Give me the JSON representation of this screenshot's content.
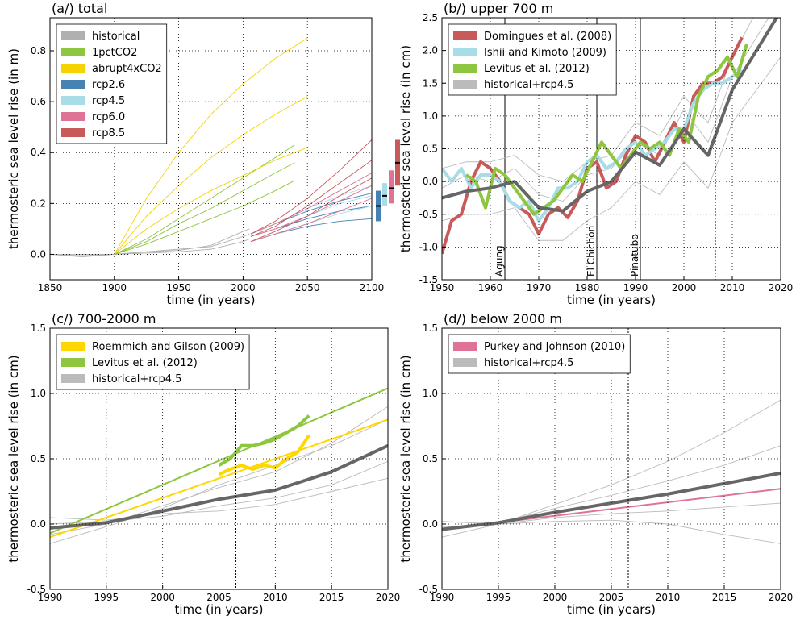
{
  "chart_data": [
    {
      "type": "line",
      "title": "(a/) total",
      "xlabel": "time (in years)",
      "ylabel": "thermosteric sea level rise (in m)",
      "xlim": [
        1850,
        2100
      ],
      "ylim": [
        -0.1,
        0.93
      ],
      "xticks": [
        1850,
        1900,
        1950,
        2000,
        2050,
        2100
      ],
      "yticks": [
        {
          "value": 0,
          "label": "0.0"
        },
        0.2,
        0.4,
        0.6,
        0.8
      ],
      "grid": true,
      "legend": "upper left",
      "series": [
        {
          "name": "historical",
          "color": "#b0b0b0",
          "x": [
            1850,
            1875,
            1900,
            1925,
            1950,
            1975,
            2000,
            2005
          ],
          "members": [
            [
              0,
              -0.01,
              0,
              0.005,
              0.01,
              0.02,
              0.05,
              0.06
            ],
            [
              0,
              0,
              0,
              0.01,
              0.02,
              0.03,
              0.07,
              0.08
            ],
            [
              0,
              -0.005,
              0,
              0.01,
              0.015,
              0.035,
              0.09,
              0.1
            ]
          ]
        },
        {
          "name": "1pctCO2",
          "color": "#8ec63f",
          "x": [
            1900,
            1925,
            1950,
            1975,
            2000,
            2025,
            2040
          ],
          "members": [
            [
              0,
              0.04,
              0.09,
              0.14,
              0.19,
              0.25,
              0.29
            ],
            [
              0,
              0.05,
              0.12,
              0.18,
              0.25,
              0.32,
              0.36
            ],
            [
              0,
              0.06,
              0.14,
              0.22,
              0.3,
              0.38,
              0.43
            ]
          ]
        },
        {
          "name": "abrupt4xCO2",
          "color": "#f5d300",
          "x": [
            1900,
            1925,
            1950,
            1975,
            2000,
            2025,
            2050
          ],
          "members": [
            [
              0,
              0.1,
              0.18,
              0.25,
              0.31,
              0.37,
              0.42
            ],
            [
              0,
              0.15,
              0.27,
              0.38,
              0.47,
              0.55,
              0.62
            ],
            [
              0,
              0.22,
              0.4,
              0.55,
              0.67,
              0.77,
              0.85
            ]
          ]
        },
        {
          "name": "rcp2.6",
          "color": "#4682b4",
          "x": [
            2006,
            2025,
            2050,
            2075,
            2100
          ],
          "members": [
            [
              0.05,
              0.08,
              0.11,
              0.13,
              0.14
            ],
            [
              0.07,
              0.1,
              0.14,
              0.17,
              0.19
            ],
            [
              0.08,
              0.12,
              0.17,
              0.21,
              0.24
            ]
          ],
          "range": [
            0.13,
            0.25
          ],
          "range_mean": 0.19
        },
        {
          "name": "rcp4.5",
          "color": "#a8dde8",
          "x": [
            2006,
            2025,
            2050,
            2075,
            2100
          ],
          "members": [
            [
              0.05,
              0.08,
              0.12,
              0.16,
              0.19
            ],
            [
              0.07,
              0.1,
              0.15,
              0.2,
              0.23
            ],
            [
              0.08,
              0.12,
              0.18,
              0.23,
              0.27
            ]
          ],
          "range": [
            0.19,
            0.28
          ],
          "range_mean": 0.23
        },
        {
          "name": "rcp6.0",
          "color": "#de7396",
          "x": [
            2006,
            2025,
            2050,
            2075,
            2100
          ],
          "members": [
            [
              0.05,
              0.08,
              0.12,
              0.17,
              0.22
            ],
            [
              0.07,
              0.1,
              0.15,
              0.21,
              0.27
            ],
            [
              0.08,
              0.12,
              0.18,
              0.25,
              0.32
            ]
          ],
          "range": [
            0.2,
            0.33
          ],
          "range_mean": 0.26
        },
        {
          "name": "rcp8.5",
          "color": "#c85a5a",
          "x": [
            2006,
            2025,
            2050,
            2075,
            2100
          ],
          "members": [
            [
              0.05,
              0.09,
              0.15,
              0.23,
              0.3
            ],
            [
              0.07,
              0.11,
              0.19,
              0.28,
              0.37
            ],
            [
              0.08,
              0.13,
              0.22,
              0.33,
              0.45
            ]
          ],
          "range": [
            0.27,
            0.45
          ],
          "range_mean": 0.36
        }
      ]
    },
    {
      "type": "line",
      "title": "(b/) upper 700 m",
      "xlabel": "time (in years)",
      "ylabel": "thermosteric sea level rise (in cm)",
      "xlim": [
        1950,
        2020
      ],
      "ylim": [
        -1.5,
        2.5
      ],
      "xticks": [
        1950,
        1960,
        1970,
        1980,
        1990,
        2000,
        2010,
        2020
      ],
      "yticks": [
        -1.5,
        {
          "value": -1,
          "label": "-1.0"
        },
        -0.5,
        {
          "value": 0,
          "label": "0.0"
        },
        0.5,
        {
          "value": 1,
          "label": "1.0"
        },
        1.5,
        {
          "value": 2,
          "label": "2.0"
        },
        2.5
      ],
      "grid": true,
      "legend": "upper left",
      "vline": 2006.5,
      "annotations": [
        {
          "label": "Agung",
          "x": 1963
        },
        {
          "label": "El Chichon",
          "x": 1982
        },
        {
          "label": "Pinatubo",
          "x": 1991
        }
      ],
      "series": [
        {
          "name": "Domingues et al. (2008)",
          "color": "#c85a5a",
          "x": [
            1950,
            1952,
            1954,
            1956,
            1958,
            1960,
            1962,
            1964,
            1966,
            1968,
            1970,
            1972,
            1974,
            1976,
            1978,
            1980,
            1982,
            1984,
            1986,
            1988,
            1990,
            1992,
            1994,
            1996,
            1998,
            2000,
            2002,
            2004,
            2006,
            2008,
            2010,
            2012
          ],
          "values": [
            -1.1,
            -0.6,
            -0.5,
            0.0,
            0.3,
            0.2,
            0.0,
            -0.3,
            -0.4,
            -0.5,
            -0.8,
            -0.5,
            -0.4,
            -0.55,
            -0.3,
            0.2,
            0.3,
            -0.1,
            0.0,
            0.4,
            0.7,
            0.6,
            0.3,
            0.6,
            0.9,
            0.6,
            1.3,
            1.5,
            1.5,
            1.6,
            1.9,
            2.2
          ]
        },
        {
          "name": "Ishii and Kimoto (2009)",
          "color": "#a8dde8",
          "x": [
            1950,
            1952,
            1954,
            1956,
            1958,
            1960,
            1962,
            1964,
            1966,
            1968,
            1970,
            1972,
            1974,
            1976,
            1978,
            1980,
            1982,
            1984,
            1986,
            1988,
            1990,
            1992,
            1994,
            1996,
            1998,
            2000,
            2002,
            2004,
            2006,
            2008,
            2010,
            2012
          ],
          "values": [
            0.2,
            0.0,
            0.2,
            -0.1,
            0.1,
            0.1,
            0.0,
            -0.3,
            -0.4,
            -0.3,
            -0.6,
            -0.4,
            -0.1,
            -0.1,
            0.0,
            0.3,
            0.4,
            0.2,
            0.3,
            0.5,
            0.6,
            0.4,
            0.5,
            0.6,
            0.8,
            0.8,
            1.2,
            1.4,
            1.5,
            1.5,
            1.6,
            1.7
          ]
        },
        {
          "name": "Levitus et al. (2012)",
          "color": "#8ec63f",
          "x": [
            1955,
            1957,
            1959,
            1961,
            1963,
            1965,
            1967,
            1969,
            1971,
            1973,
            1975,
            1977,
            1979,
            1981,
            1983,
            1985,
            1987,
            1989,
            1991,
            1993,
            1995,
            1997,
            1999,
            2001,
            2003,
            2005,
            2007,
            2009,
            2011,
            2013
          ],
          "values": [
            0.1,
            0.0,
            -0.4,
            0.2,
            0.1,
            -0.1,
            -0.3,
            -0.5,
            -0.4,
            -0.3,
            -0.1,
            0.1,
            0.0,
            0.3,
            0.6,
            0.4,
            0.2,
            0.4,
            0.6,
            0.5,
            0.6,
            0.4,
            0.8,
            0.6,
            1.3,
            1.6,
            1.7,
            1.9,
            1.6,
            2.1
          ]
        },
        {
          "name": "historical+rcp4.5",
          "color": "#bbbbbb",
          "mean_color": "#666666",
          "x": [
            1950,
            1955,
            1960,
            1965,
            1970,
            1975,
            1980,
            1985,
            1990,
            1995,
            2000,
            2005,
            2010,
            2015,
            2020
          ],
          "values": [
            -0.25,
            -0.15,
            -0.1,
            0.0,
            -0.4,
            -0.45,
            -0.15,
            0.0,
            0.45,
            0.25,
            0.8,
            0.4,
            1.4,
            2.0,
            2.6
          ],
          "members": [
            [
              -0.6,
              -0.5,
              -0.5,
              -0.4,
              -0.9,
              -0.9,
              -0.6,
              -0.4,
              0.0,
              -0.2,
              0.3,
              -0.1,
              0.9,
              1.4,
              1.9
            ],
            [
              0.2,
              0.3,
              0.3,
              0.4,
              0.1,
              0.0,
              0.3,
              0.4,
              0.9,
              0.7,
              1.3,
              0.9,
              1.9,
              2.6,
              3.2
            ],
            [
              -0.1,
              0.1,
              0.0,
              0.2,
              -0.2,
              -0.3,
              0.1,
              0.2,
              0.6,
              0.4,
              1.1,
              0.6,
              1.6,
              2.2,
              2.8
            ]
          ]
        }
      ]
    },
    {
      "type": "line",
      "title": "(c/) 700-2000 m",
      "xlabel": "time (in years)",
      "ylabel": "thermosteric sea level rise (in cm)",
      "xlim": [
        1990,
        2020
      ],
      "ylim": [
        -0.5,
        1.5
      ],
      "xticks": [
        1990,
        1995,
        2000,
        2005,
        2010,
        2015,
        2020
      ],
      "yticks": [
        -0.5,
        {
          "value": 0,
          "label": "0.0"
        },
        0.5,
        {
          "value": 1,
          "label": "1.0"
        },
        1.5
      ],
      "grid": true,
      "legend": "upper left",
      "vline": 2006.5,
      "series": [
        {
          "name": "Roemmich and Gilson (2009)",
          "color": "#ffd700",
          "x": [
            2005,
            2006,
            2007,
            2008,
            2009,
            2010,
            2011,
            2012,
            2013
          ],
          "values": [
            0.38,
            0.42,
            0.45,
            0.42,
            0.45,
            0.43,
            0.5,
            0.55,
            0.68
          ],
          "trend": {
            "x": [
              1990,
              2020
            ],
            "values": [
              -0.1,
              0.8
            ]
          }
        },
        {
          "name": "Levitus et al. (2012)",
          "color": "#8ec63f",
          "x": [
            2005,
            2006,
            2007,
            2008,
            2009,
            2010,
            2011,
            2012,
            2013
          ],
          "values": [
            0.45,
            0.5,
            0.6,
            0.6,
            0.62,
            0.65,
            0.7,
            0.75,
            0.83
          ],
          "trend": {
            "x": [
              1990,
              2020
            ],
            "values": [
              -0.07,
              1.04
            ]
          }
        },
        {
          "name": "historical+rcp4.5",
          "color": "#bbbbbb",
          "mean_color": "#666666",
          "x": [
            1990,
            1995,
            2000,
            2005,
            2010,
            2015,
            2020
          ],
          "values": [
            -0.03,
            0.01,
            0.1,
            0.19,
            0.26,
            0.4,
            0.6
          ],
          "members": [
            [
              -0.15,
              -0.02,
              0.12,
              0.3,
              0.45,
              0.6,
              0.8
            ],
            [
              0.05,
              0.03,
              0.08,
              0.1,
              0.15,
              0.25,
              0.35
            ],
            [
              -0.08,
              0.0,
              0.14,
              0.28,
              0.4,
              0.62,
              0.9
            ],
            [
              0.0,
              0.02,
              0.06,
              0.14,
              0.2,
              0.3,
              0.48
            ]
          ]
        }
      ]
    },
    {
      "type": "line",
      "title": "(d/) below 2000 m",
      "xlabel": "time (in years)",
      "ylabel": "thermosteric sea level rise (in cm)",
      "xlim": [
        1990,
        2020
      ],
      "ylim": [
        -0.5,
        1.5
      ],
      "xticks": [
        1990,
        1995,
        2000,
        2005,
        2010,
        2015,
        2020
      ],
      "yticks": [
        -0.5,
        {
          "value": 0,
          "label": "0.0"
        },
        0.5,
        {
          "value": 1,
          "label": "1.0"
        },
        1.5
      ],
      "grid": true,
      "legend": "upper left",
      "vline": 2006.5,
      "series": [
        {
          "name": "Purkey and Johnson (2010)",
          "color": "#de7396",
          "trend": {
            "x": [
              1990,
              2020
            ],
            "values": [
              -0.04,
              0.27
            ]
          }
        },
        {
          "name": "historical+rcp4.5",
          "color": "#bbbbbb",
          "mean_color": "#666666",
          "x": [
            1990,
            1995,
            2000,
            2005,
            2010,
            2015,
            2020
          ],
          "values": [
            -0.04,
            0.01,
            0.09,
            0.16,
            0.23,
            0.31,
            0.39
          ],
          "members": [
            [
              -0.05,
              0.01,
              0.12,
              0.22,
              0.33,
              0.45,
              0.6
            ],
            [
              -0.02,
              0.0,
              0.05,
              0.08,
              0.1,
              0.13,
              0.16
            ],
            [
              -0.1,
              0.0,
              0.15,
              0.3,
              0.48,
              0.7,
              0.95
            ],
            [
              0.02,
              0.0,
              0.02,
              0.03,
              0.0,
              -0.08,
              -0.15
            ]
          ]
        }
      ]
    }
  ]
}
